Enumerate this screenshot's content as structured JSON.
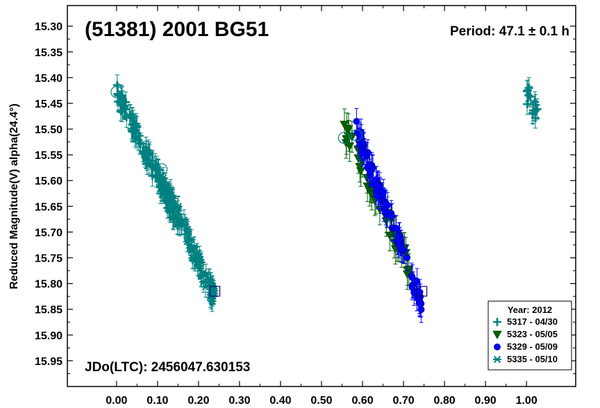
{
  "chart_data": {
    "type": "scatter",
    "title": "(51381) 2001 BG51",
    "period_label": "Period: 47.1 ± 0.1 h",
    "jd_label": "JDo(LTC): 2456047.630153",
    "xlabel": "",
    "ylabel": "Reduced Magnitude(V) alpha(24.4°)",
    "xlim": [
      -0.12,
      1.12
    ],
    "ylim": [
      16.0,
      15.26
    ],
    "y_inverted": true,
    "x_ticks": [
      "0.00",
      "0.10",
      "0.20",
      "0.30",
      "0.40",
      "0.50",
      "0.60",
      "0.70",
      "0.80",
      "0.90",
      "1.00"
    ],
    "y_ticks": [
      "15.30",
      "15.35",
      "15.40",
      "15.45",
      "15.50",
      "15.55",
      "15.60",
      "15.65",
      "15.70",
      "15.75",
      "15.80",
      "15.85",
      "15.90",
      "15.95"
    ],
    "grid": false,
    "legend": {
      "placement": "bottom-right",
      "title": "Year: 2012",
      "entries": [
        "5317 - 04/30",
        "5323 - 05/05",
        "5329 - 05/09",
        "5335 - 05/10"
      ]
    },
    "series": [
      {
        "name": "5317 - 04/30",
        "marker": "plus",
        "color": "#008080",
        "x_range": [
          0.0,
          0.14
        ],
        "y_range": [
          15.43,
          15.66
        ],
        "count": 110,
        "wrap_x_offset": 1.0,
        "wrap_x_range": [
          0.0,
          0.03
        ],
        "error": 0.02
      },
      {
        "name": "5323 - 05/05",
        "marker": "triangle-down",
        "color": "#006400",
        "x_range": [
          0.555,
          0.72
        ],
        "y_range": [
          15.5,
          15.78
        ],
        "count": 45,
        "error": 0.03
      },
      {
        "name": "5329 - 05/09",
        "marker": "circle",
        "color": "#0000ff",
        "x_range": [
          0.585,
          0.745
        ],
        "y_range": [
          15.5,
          15.84
        ],
        "count": 90,
        "error": 0.025
      },
      {
        "name": "5335 - 05/10",
        "marker": "asterisk",
        "color": "#008080",
        "x_range": [
          0.1,
          0.24
        ],
        "y_range": [
          15.58,
          15.83
        ],
        "count": 90,
        "error": 0.02
      }
    ],
    "highlight_circles": [
      [
        0.0,
        15.428
      ],
      [
        0.11,
        15.578
      ],
      [
        0.555,
        15.517
      ],
      [
        0.585,
        15.512
      ]
    ],
    "highlight_squares": [
      [
        0.24,
        15.815
      ],
      [
        0.745,
        15.815
      ]
    ]
  }
}
